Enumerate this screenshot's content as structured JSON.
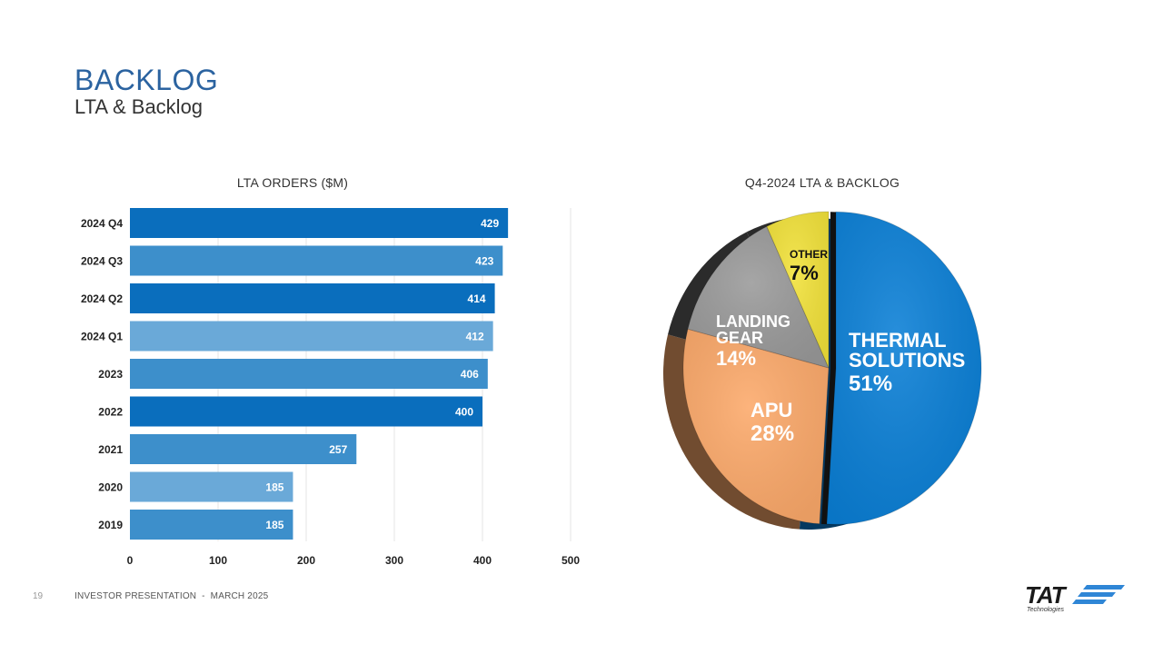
{
  "header": {
    "title": "BACKLOG",
    "subtitle": "LTA & Backlog"
  },
  "footer": {
    "page_number": "19",
    "text": "INVESTOR PRESENTATION  -  MARCH 2025",
    "logo_text": "TAT",
    "logo_sub": "Technologies"
  },
  "colors": {
    "bar_dark": "#0a6ebd",
    "bar_mid": "#3d8fcb",
    "bar_light": "#6aa9d8",
    "thermal": "#0a7fd6",
    "apu": "#fca96a",
    "landing": "#9a9a9a",
    "other": "#f2e23a",
    "side_dark": "#2b2b2b"
  },
  "chart_data": [
    {
      "type": "bar",
      "orientation": "horizontal",
      "title": "LTA ORDERS ($M)",
      "categories": [
        "2024 Q4",
        "2024 Q3",
        "2024 Q2",
        "2024 Q1",
        "2023",
        "2022",
        "2021",
        "2020",
        "2019"
      ],
      "values": [
        429,
        423,
        414,
        412,
        406,
        400,
        257,
        185,
        185
      ],
      "value_labels": [
        "429",
        "423",
        "414",
        "412",
        "406",
        "400",
        "257",
        "185",
        "185"
      ],
      "shades": [
        "dark",
        "mid",
        "dark",
        "light",
        "mid",
        "dark",
        "mid",
        "light",
        "mid"
      ],
      "xticks": [
        0,
        100,
        200,
        300,
        400,
        500
      ],
      "xtick_labels": [
        "0",
        "100",
        "200",
        "300",
        "400",
        "500"
      ],
      "xlim": [
        0,
        500
      ],
      "grid": true
    },
    {
      "type": "pie",
      "title": "Q4-2024 LTA & BACKLOG",
      "slices": [
        {
          "name": "THERMAL SOLUTIONS",
          "label_lines": [
            "THERMAL",
            "SOLUTIONS"
          ],
          "value": 51,
          "pct_label": "51%",
          "color_key": "thermal"
        },
        {
          "name": "APU",
          "label_lines": [
            "APU"
          ],
          "value": 28,
          "pct_label": "28%",
          "color_key": "apu"
        },
        {
          "name": "LANDING GEAR",
          "label_lines": [
            "LANDING",
            "GEAR"
          ],
          "value": 14,
          "pct_label": "14%",
          "color_key": "landing"
        },
        {
          "name": "OTHER",
          "label_lines": [
            "OTHER"
          ],
          "value": 7,
          "pct_label": "7%",
          "color_key": "other"
        }
      ]
    }
  ]
}
